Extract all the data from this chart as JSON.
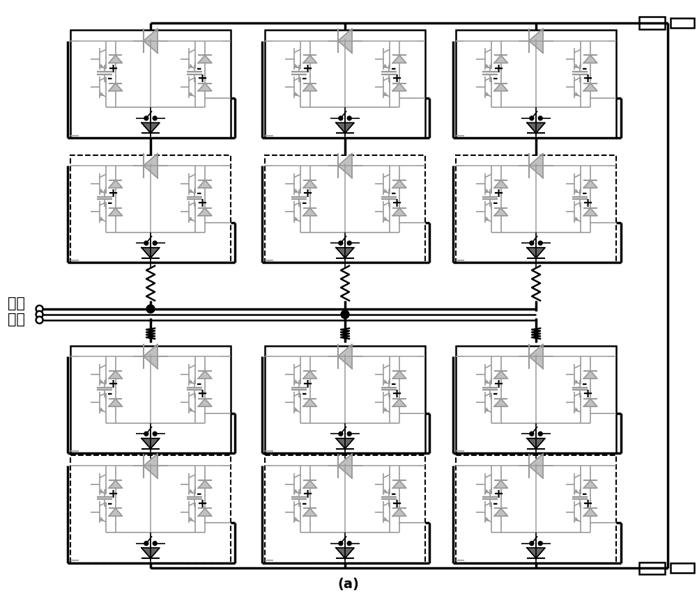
{
  "bg_color": "#ffffff",
  "line_color": "#000000",
  "gray_color": "#999999",
  "green_color": "#88aa88",
  "purple_color": "#9988bb",
  "title": "(a)",
  "title_fontsize": 14,
  "label_text": "交流\n系统",
  "label_fontsize": 15,
  "fig_width": 10.0,
  "fig_height": 8.53
}
